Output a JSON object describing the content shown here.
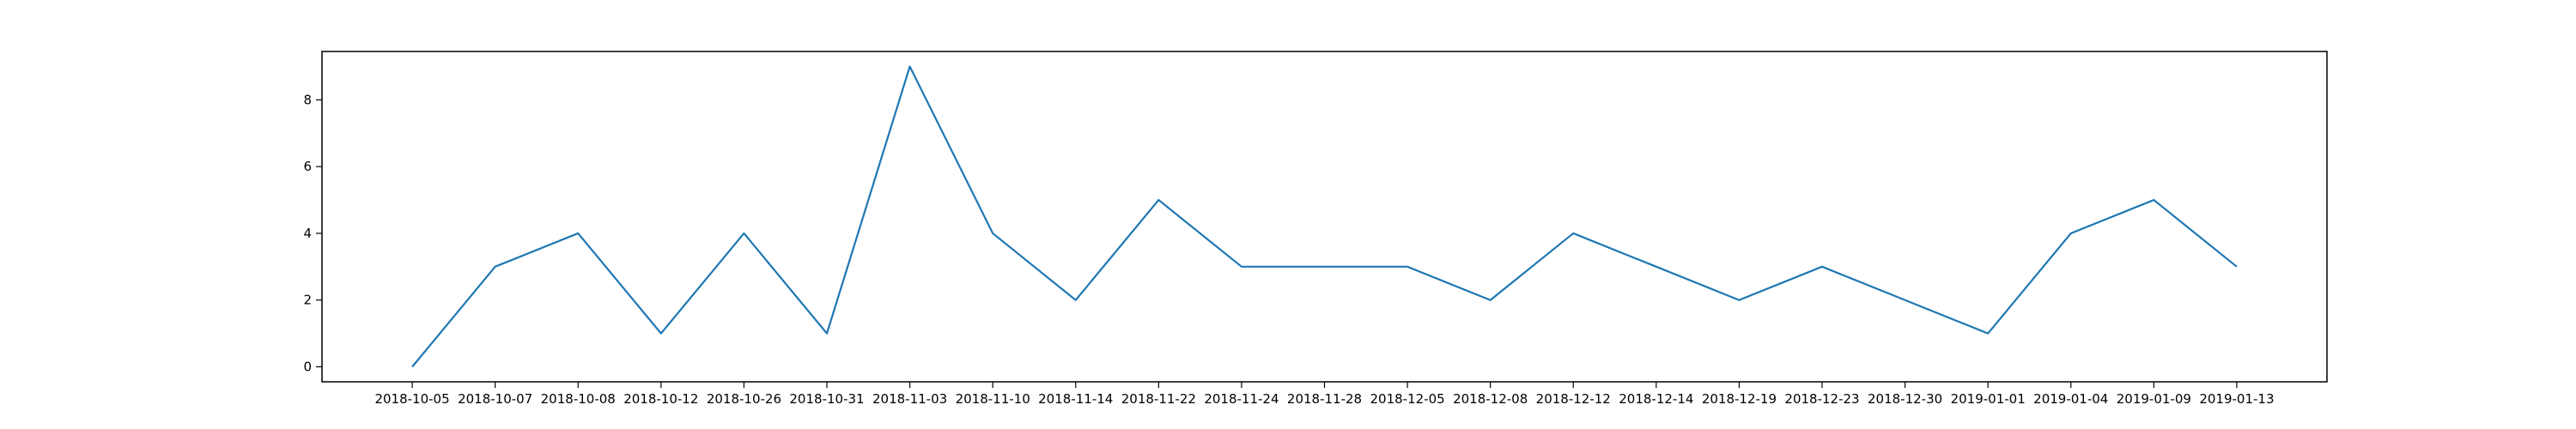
{
  "chart_data": {
    "type": "line",
    "categories": [
      "2018-10-05",
      "2018-10-07",
      "2018-10-08",
      "2018-10-12",
      "2018-10-26",
      "2018-10-31",
      "2018-11-03",
      "2018-11-10",
      "2018-11-14",
      "2018-11-22",
      "2018-11-24",
      "2018-11-28",
      "2018-12-05",
      "2018-12-08",
      "2018-12-12",
      "2018-12-14",
      "2018-12-19",
      "2018-12-23",
      "2018-12-30",
      "2019-01-01",
      "2019-01-04",
      "2019-01-09",
      "2019-01-13"
    ],
    "series": [
      {
        "values": [
          0,
          3,
          4,
          1,
          4,
          1,
          9,
          4,
          2,
          5,
          3,
          3,
          3,
          2,
          4,
          3,
          2,
          3,
          2,
          1,
          4,
          5,
          3
        ]
      }
    ],
    "yticks": [
      0,
      2,
      4,
      6,
      8
    ],
    "ylim": [
      -0.45,
      9.45
    ],
    "title": "",
    "xlabel": "",
    "ylabel": "",
    "grid": false,
    "line_color": "#1f77b4"
  }
}
